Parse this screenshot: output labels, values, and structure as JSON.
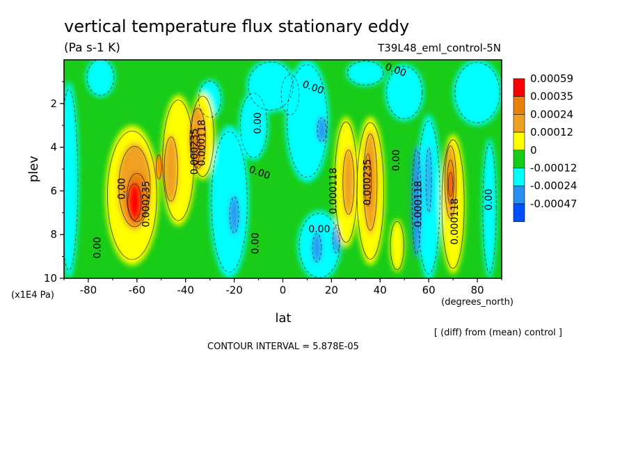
{
  "chart_data": {
    "type": "heatmap",
    "title": "vertical temperature flux stationary eddy",
    "units": "(Pa s-1 K)",
    "run_label": "T39L48_eml_control-5N",
    "xlabel": "lat",
    "x_units": "(degrees_north)",
    "ylabel": "plev",
    "y_units": "(x1E4 Pa)",
    "xlim": [
      -90,
      90
    ],
    "ylim": [
      10,
      0
    ],
    "x_ticks": [
      "-80",
      "-60",
      "-40",
      "-20",
      "0",
      "20",
      "40",
      "60",
      "80"
    ],
    "y_ticks": [
      "2",
      "4",
      "6",
      "8",
      "10"
    ],
    "contour_interval": "CONTOUR INTERVAL = 5.878E-05",
    "note": "[ (diff) from (mean) control ]",
    "legend": {
      "labels": [
        "0.00059",
        "0.00035",
        "0.00024",
        "0.00012",
        "0",
        "-0.00012",
        "-0.00024",
        "-0.00047"
      ],
      "colors": [
        "#ff0000",
        "#e8820c",
        "#f0a020",
        "#ffff00",
        "#18cc18",
        "#00ffff",
        "#2a90f0",
        "#0050ff"
      ]
    },
    "contour_labels": [
      {
        "text": "0.00",
        "lat": -65,
        "p": 5.9,
        "rot": -90
      },
      {
        "text": "0.00",
        "lat": -75,
        "p": 8.6,
        "rot": -90
      },
      {
        "text": "0.000235",
        "lat": -55,
        "p": 6.6,
        "rot": -90
      },
      {
        "text": "0.000118",
        "lat": -32,
        "p": 3.8,
        "rot": -90
      },
      {
        "text": "0.000235",
        "lat": -35,
        "p": 4.2,
        "rot": -90
      },
      {
        "text": "0.00",
        "lat": -9,
        "p": 2.9,
        "rot": -90
      },
      {
        "text": "0.00",
        "lat": -10,
        "p": 8.4,
        "rot": -90
      },
      {
        "text": "0.00",
        "lat": -10,
        "p": 5.3,
        "rot": 20
      },
      {
        "text": "0.00",
        "lat": 12,
        "p": 1.4,
        "rot": 20
      },
      {
        "text": "0.00",
        "lat": 15,
        "p": 7.9,
        "rot": 0
      },
      {
        "text": "0.000118",
        "lat": 22,
        "p": 6.0,
        "rot": -90
      },
      {
        "text": "0.000235",
        "lat": 36,
        "p": 5.6,
        "rot": -90
      },
      {
        "text": "0.00",
        "lat": 48,
        "p": 4.6,
        "rot": -90
      },
      {
        "text": "0.000118",
        "lat": 57,
        "p": 6.6,
        "rot": -90
      },
      {
        "text": "0.00",
        "lat": 46,
        "p": 0.6,
        "rot": 20
      },
      {
        "text": "0.000118",
        "lat": 72,
        "p": 7.4,
        "rot": -90
      },
      {
        "text": "0.00",
        "lat": 86,
        "p": 6.4,
        "rot": -90
      }
    ]
  }
}
